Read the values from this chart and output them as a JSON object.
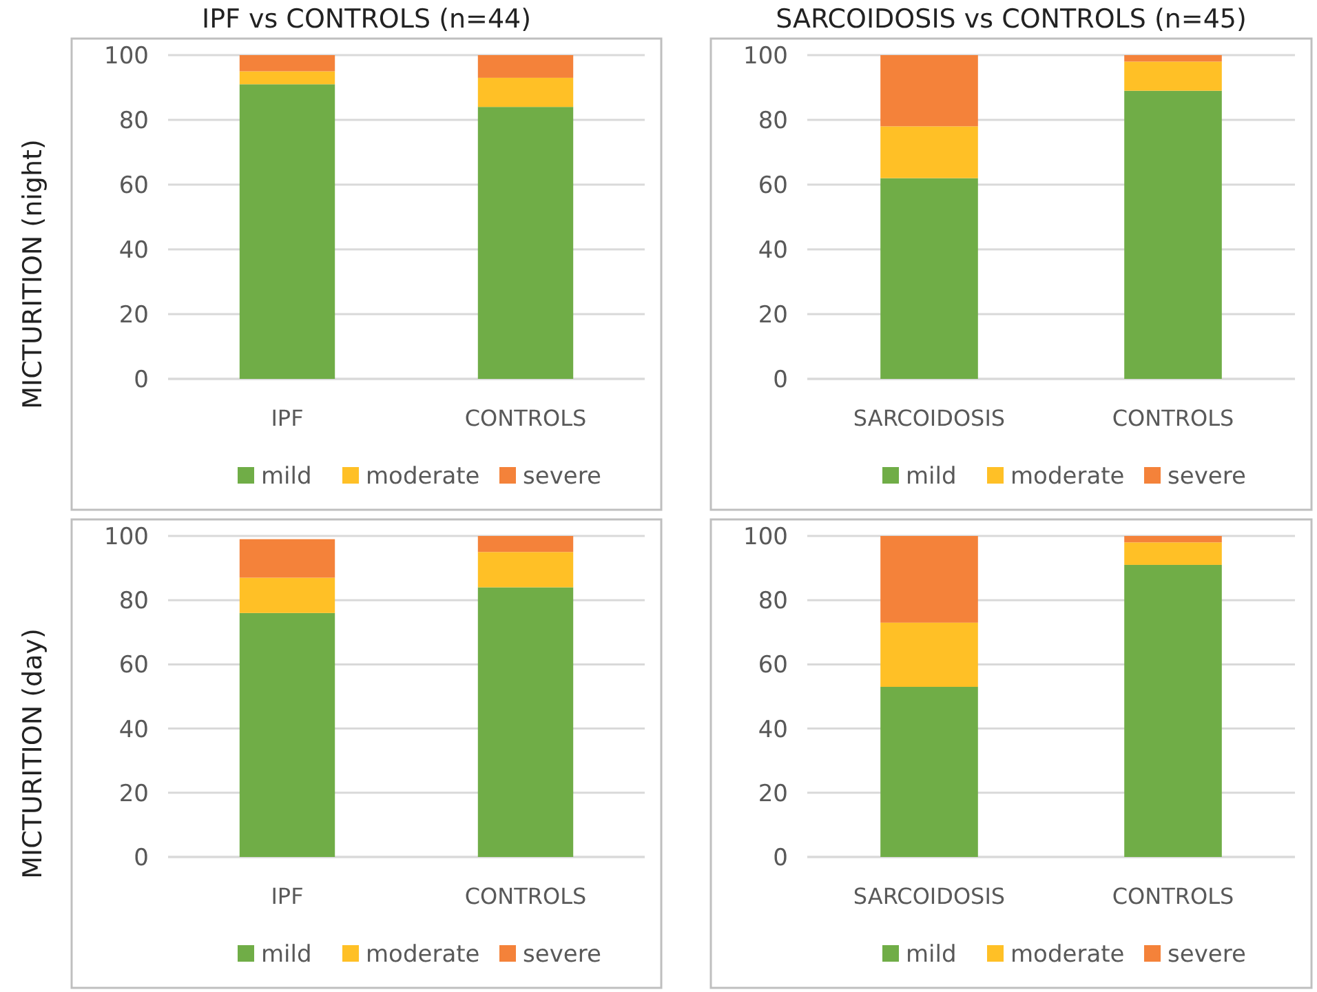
{
  "chart_data": [
    {
      "type": "bar",
      "title": "IPF vs CONTROLS (n=44)",
      "ylabel": "MICTURITION (night)",
      "categories": [
        "IPF",
        "CONTROLS"
      ],
      "stacked": true,
      "ylim": [
        0,
        100
      ],
      "yticks": [
        0,
        20,
        40,
        60,
        80,
        100
      ],
      "grid": "y",
      "legend": "bottom",
      "series": [
        {
          "name": "mild",
          "color": "#70ad47",
          "values": [
            91,
            84
          ]
        },
        {
          "name": "moderate",
          "color": "#ffc026",
          "values": [
            4,
            9
          ]
        },
        {
          "name": "severe",
          "color": "#f4823a",
          "values": [
            5,
            7
          ]
        }
      ]
    },
    {
      "type": "bar",
      "title": "SARCOIDOSIS vs CONTROLS (n=45)",
      "categories": [
        "SARCOIDOSIS",
        "CONTROLS"
      ],
      "stacked": true,
      "ylim": [
        0,
        100
      ],
      "yticks": [
        0,
        20,
        40,
        60,
        80,
        100
      ],
      "grid": "y",
      "legend": "bottom",
      "series": [
        {
          "name": "mild",
          "color": "#70ad47",
          "values": [
            62,
            89
          ]
        },
        {
          "name": "moderate",
          "color": "#ffc026",
          "values": [
            16,
            9
          ]
        },
        {
          "name": "severe",
          "color": "#f4823a",
          "values": [
            22,
            2
          ]
        }
      ]
    },
    {
      "type": "bar",
      "ylabel": "MICTURITION (day)",
      "categories": [
        "IPF",
        "CONTROLS"
      ],
      "stacked": true,
      "ylim": [
        0,
        100
      ],
      "yticks": [
        0,
        20,
        40,
        60,
        80,
        100
      ],
      "grid": "y",
      "legend": "bottom",
      "series": [
        {
          "name": "mild",
          "color": "#70ad47",
          "values": [
            76,
            84
          ]
        },
        {
          "name": "moderate",
          "color": "#ffc026",
          "values": [
            11,
            11
          ]
        },
        {
          "name": "severe",
          "color": "#f4823a",
          "values": [
            12,
            5
          ]
        }
      ]
    },
    {
      "type": "bar",
      "categories": [
        "SARCOIDOSIS",
        "CONTROLS"
      ],
      "stacked": true,
      "ylim": [
        0,
        100
      ],
      "yticks": [
        0,
        20,
        40,
        60,
        80,
        100
      ],
      "grid": "y",
      "legend": "bottom",
      "series": [
        {
          "name": "mild",
          "color": "#70ad47",
          "values": [
            53,
            91
          ]
        },
        {
          "name": "moderate",
          "color": "#ffc026",
          "values": [
            20,
            7
          ]
        },
        {
          "name": "severe",
          "color": "#f4823a",
          "values": [
            27,
            2
          ]
        }
      ]
    }
  ]
}
